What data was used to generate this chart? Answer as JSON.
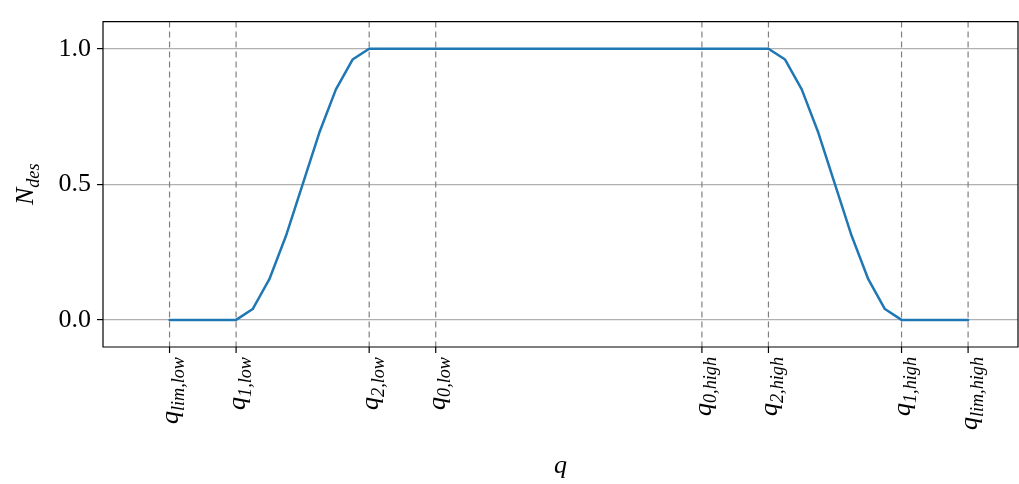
{
  "chart_data": {
    "type": "line",
    "xlabel": "q",
    "ylabel": "N$_{des}$",
    "categories": [
      null,
      null,
      null,
      null,
      "q$_{lim,low}$",
      null,
      null,
      null,
      "q$_{1,low}$",
      null,
      null,
      null,
      null,
      null,
      null,
      null,
      "q$_{2,low}$",
      null,
      null,
      null,
      "q$_{0,low}$",
      null,
      null,
      null,
      null,
      null,
      null,
      null,
      null,
      null,
      null,
      null,
      null,
      null,
      null,
      null,
      "q$_{0,high}$",
      null,
      null,
      null,
      "q$_{2,high}$",
      null,
      null,
      null,
      null,
      null,
      null,
      null,
      "q$_{1,high}$",
      null,
      null,
      null,
      "q$_{lim,high}$",
      null,
      null,
      null
    ],
    "series": [
      {
        "color": "#1f77b4",
        "values": [
          null,
          null,
          null,
          null,
          0,
          0,
          0,
          0,
          0,
          0.04,
          0.15,
          0.31,
          0.5,
          0.69,
          0.85,
          0.96,
          1,
          1,
          1,
          1,
          1,
          1,
          1,
          1,
          1,
          1,
          1,
          1,
          1,
          1,
          1,
          1,
          1,
          1,
          1,
          1,
          1,
          1,
          1,
          1,
          1,
          0.96,
          0.85,
          0.69,
          0.5,
          0.31,
          0.15,
          0.04,
          0,
          0,
          0,
          0,
          0,
          null,
          null,
          null
        ]
      }
    ],
    "ylim": [
      -0.1,
      1.1
    ],
    "yticks": [
      {
        "value": 0,
        "label": "0.0"
      },
      {
        "value": 0.5,
        "label": "0.5"
      },
      {
        "value": 1,
        "label": "1.0"
      }
    ],
    "grid": "y",
    "marker": "none",
    "line_style": "solid",
    "ref_lines": [
      {
        "axis": "x",
        "value": "q$_{lim,low}$",
        "color": "#808080",
        "line_style": "dashed"
      },
      {
        "axis": "x",
        "value": "q$_{1,low}$",
        "color": "#808080",
        "line_style": "dashed"
      },
      {
        "axis": "x",
        "value": "q$_{2,low}$",
        "color": "#808080",
        "line_style": "dashed"
      },
      {
        "axis": "x",
        "value": "q$_{0,low}$",
        "color": "#808080",
        "line_style": "dashed"
      },
      {
        "axis": "x",
        "value": "q$_{0,high}$",
        "color": "#808080",
        "line_style": "dashed"
      },
      {
        "axis": "x",
        "value": "q$_{2,high}$",
        "color": "#808080",
        "line_style": "dashed"
      },
      {
        "axis": "x",
        "value": "q$_{1,high}$",
        "color": "#808080",
        "line_style": "dashed"
      },
      {
        "axis": "x",
        "value": "q$_{lim,high}$",
        "color": "#808080",
        "line_style": "dashed"
      }
    ]
  }
}
